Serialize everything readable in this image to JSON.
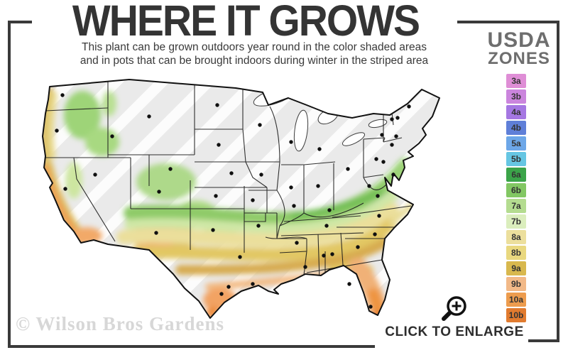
{
  "header": {
    "title": "WHERE IT GROWS",
    "subtitle_line1": "This plant can be grown outdoors year round in the color shaded areas",
    "subtitle_line2": "and in pots that can be brought indoors during winter in the striped area"
  },
  "legend": {
    "title_line1": "USDA",
    "title_line2": "ZONES",
    "zones": [
      {
        "label": "3a",
        "color": "#df8ed6"
      },
      {
        "label": "3b",
        "color": "#cb85dd"
      },
      {
        "label": "4a",
        "color": "#a577e2"
      },
      {
        "label": "4b",
        "color": "#5f7fd8"
      },
      {
        "label": "5a",
        "color": "#6da7e8"
      },
      {
        "label": "5b",
        "color": "#66c6e3"
      },
      {
        "label": "6a",
        "color": "#3ba449"
      },
      {
        "label": "6b",
        "color": "#82c763"
      },
      {
        "label": "7a",
        "color": "#b4dc90"
      },
      {
        "label": "7b",
        "color": "#dbeebd"
      },
      {
        "label": "8a",
        "color": "#ecdf9d"
      },
      {
        "label": "8b",
        "color": "#e9d87f"
      },
      {
        "label": "9a",
        "color": "#d8b84e"
      },
      {
        "label": "9b",
        "color": "#f2b988"
      },
      {
        "label": "10a",
        "color": "#ed9c4e"
      },
      {
        "label": "10b",
        "color": "#e17b2f"
      }
    ]
  },
  "footer": {
    "watermark": "© Wilson Bros Gardens",
    "enlarge_label": "CLICK TO ENLARGE",
    "enlarge_icon": "magnifier-plus"
  }
}
